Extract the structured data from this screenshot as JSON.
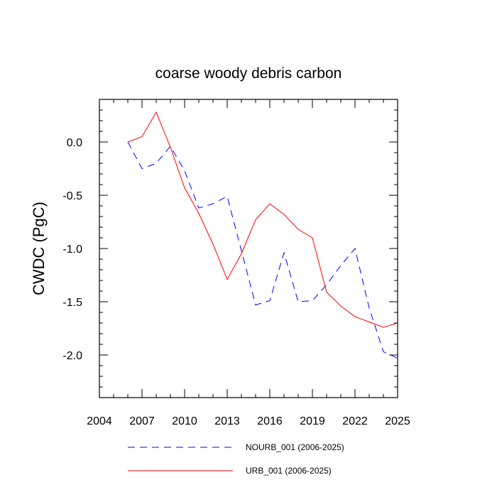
{
  "chart_data": {
    "type": "line",
    "title": "coarse woody debris carbon",
    "xlabel": "",
    "ylabel": "CWDC  (PgC)",
    "xlim": [
      2004,
      2025
    ],
    "ylim": [
      -2.4,
      0.4
    ],
    "xticks": [
      2004,
      2007,
      2010,
      2013,
      2016,
      2019,
      2022,
      2025
    ],
    "xtick_labels": [
      "2004",
      "2007",
      "2010",
      "2013",
      "2016",
      "2019",
      "2022",
      "2025"
    ],
    "yticks": [
      0.0,
      -0.5,
      -1.0,
      -1.5,
      -2.0
    ],
    "ytick_labels": [
      "0.0",
      "-0.5",
      "-1.0",
      "-1.5",
      "-2.0"
    ],
    "grid": false,
    "legend_position": "bottom",
    "series": [
      {
        "name": "NOURB_001 (2006-2025)",
        "color": "#0000ff",
        "style": "dashed",
        "x": [
          2006,
          2007,
          2008,
          2009,
          2010,
          2011,
          2012,
          2013,
          2014,
          2015,
          2016,
          2017,
          2018,
          2019,
          2020,
          2021,
          2022,
          2023,
          2024,
          2025
        ],
        "values": [
          0.0,
          -0.25,
          -0.2,
          -0.04,
          -0.27,
          -0.62,
          -0.58,
          -0.51,
          -1.02,
          -1.53,
          -1.49,
          -1.04,
          -1.5,
          -1.49,
          -1.34,
          -1.16,
          -1.0,
          -1.56,
          -1.97,
          -2.03
        ]
      },
      {
        "name": "URB_001 (2006-2025)",
        "color": "#ff0000",
        "style": "solid",
        "x": [
          2006,
          2007,
          2008,
          2009,
          2010,
          2011,
          2012,
          2013,
          2014,
          2015,
          2016,
          2017,
          2018,
          2019,
          2020,
          2021,
          2022,
          2023,
          2024,
          2025
        ],
        "values": [
          0.0,
          0.05,
          0.28,
          -0.05,
          -0.43,
          -0.67,
          -0.96,
          -1.29,
          -1.05,
          -0.73,
          -0.58,
          -0.68,
          -0.82,
          -0.9,
          -1.41,
          -1.54,
          -1.64,
          -1.69,
          -1.74,
          -1.7
        ]
      }
    ]
  }
}
